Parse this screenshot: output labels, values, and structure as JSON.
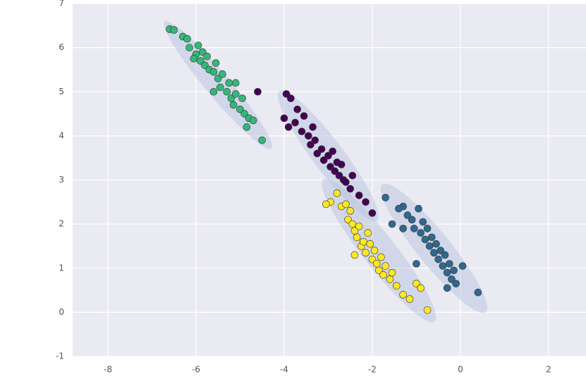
{
  "chart_data": {
    "type": "scatter",
    "xlim": [
      -8.8,
      2.85
    ],
    "ylim": [
      -1,
      7
    ],
    "xticks": [
      -8,
      -6,
      -4,
      -2,
      0,
      2
    ],
    "yticks": [
      -1,
      0,
      1,
      2,
      3,
      4,
      5,
      6,
      7
    ],
    "grid": true,
    "background": "#eaeaf2",
    "grid_color": "#ffffff",
    "marker_edge_color": "#333333",
    "ellipse_color": "#b3c0dc",
    "ellipses": [
      {
        "center_x": -5.5,
        "center_y": 5.15,
        "width": 3.76,
        "height": 0.55,
        "angle": -50
      },
      {
        "center_x": -3.0,
        "center_y": 3.55,
        "width": 3.68,
        "height": 0.7,
        "angle": -53
      },
      {
        "center_x": -1.85,
        "center_y": 1.4,
        "width": 4.1,
        "height": 0.75,
        "angle": -52
      },
      {
        "center_x": -0.6,
        "center_y": 1.45,
        "width": 3.73,
        "height": 0.75,
        "angle": -51
      }
    ],
    "series": [
      {
        "color": "#440154",
        "x": [
          -4.6,
          -3.95,
          -3.85,
          -3.7,
          -4.0,
          -3.9,
          -3.75,
          -3.6,
          -3.55,
          -3.45,
          -3.4,
          -3.3,
          -3.25,
          -3.15,
          -3.1,
          -3.0,
          -2.95,
          -2.9,
          -2.85,
          -2.8,
          -2.75,
          -2.7,
          -2.65,
          -2.6,
          -2.5,
          -2.45,
          -2.3,
          -2.15,
          -2.0,
          -3.35
        ],
        "y": [
          5.0,
          4.95,
          4.85,
          4.6,
          4.4,
          4.2,
          4.3,
          4.1,
          4.45,
          4.0,
          3.8,
          3.9,
          3.6,
          3.7,
          3.45,
          3.55,
          3.3,
          3.65,
          3.2,
          3.4,
          3.1,
          3.35,
          3.0,
          2.95,
          2.8,
          3.1,
          2.65,
          2.5,
          2.25,
          4.2
        ]
      },
      {
        "color": "#31688e",
        "x": [
          -1.7,
          -1.3,
          -1.4,
          -1.55,
          -1.2,
          -1.1,
          -0.95,
          -1.05,
          -0.9,
          -0.85,
          -0.8,
          -0.75,
          -0.7,
          -0.65,
          -0.6,
          -0.55,
          -0.5,
          -0.45,
          -0.4,
          -0.35,
          -0.3,
          -0.25,
          -0.2,
          -0.15,
          -0.1,
          0.05,
          -0.3,
          0.4,
          -1.0,
          -1.3
        ],
        "y": [
          2.6,
          2.4,
          2.35,
          2.0,
          2.2,
          2.1,
          2.35,
          1.9,
          1.8,
          2.05,
          1.65,
          1.9,
          1.5,
          1.7,
          1.35,
          1.55,
          1.2,
          1.4,
          1.05,
          1.3,
          0.9,
          1.1,
          0.75,
          0.95,
          0.65,
          1.05,
          0.55,
          0.45,
          1.1,
          1.9
        ]
      },
      {
        "color": "#35b779",
        "x": [
          -6.6,
          -6.5,
          -6.3,
          -6.2,
          -6.15,
          -6.0,
          -6.05,
          -5.9,
          -5.95,
          -5.85,
          -5.8,
          -5.75,
          -5.7,
          -5.6,
          -5.55,
          -5.5,
          -5.45,
          -5.4,
          -5.3,
          -5.25,
          -5.2,
          -5.15,
          -5.1,
          -5.0,
          -4.95,
          -4.9,
          -4.85,
          -4.8,
          -4.7,
          -4.5,
          -5.6,
          -5.1
        ],
        "y": [
          6.42,
          6.4,
          6.25,
          6.2,
          6.0,
          5.85,
          5.75,
          5.7,
          6.05,
          5.9,
          5.6,
          5.8,
          5.5,
          5.45,
          5.65,
          5.3,
          5.1,
          5.4,
          5.0,
          5.2,
          4.85,
          4.7,
          4.95,
          4.6,
          4.85,
          4.5,
          4.2,
          4.4,
          4.35,
          3.9,
          5.0,
          5.2
        ]
      },
      {
        "color": "#fde725",
        "x": [
          -2.8,
          -2.95,
          -3.05,
          -2.7,
          -2.6,
          -2.5,
          -2.55,
          -2.45,
          -2.4,
          -2.35,
          -2.3,
          -2.25,
          -2.2,
          -2.15,
          -2.1,
          -2.05,
          -2.0,
          -1.95,
          -1.9,
          -1.85,
          -1.8,
          -1.75,
          -1.7,
          -1.6,
          -1.55,
          -1.45,
          -1.3,
          -1.15,
          -1.0,
          -0.9,
          -0.75,
          -2.4
        ],
        "y": [
          2.7,
          2.5,
          2.45,
          2.4,
          2.45,
          2.3,
          2.1,
          2.0,
          1.85,
          1.7,
          1.95,
          1.5,
          1.6,
          1.35,
          1.8,
          1.55,
          1.2,
          1.4,
          1.1,
          0.95,
          1.25,
          0.85,
          1.05,
          0.75,
          0.9,
          0.6,
          0.4,
          0.3,
          0.65,
          0.55,
          0.05,
          1.3
        ]
      }
    ]
  }
}
